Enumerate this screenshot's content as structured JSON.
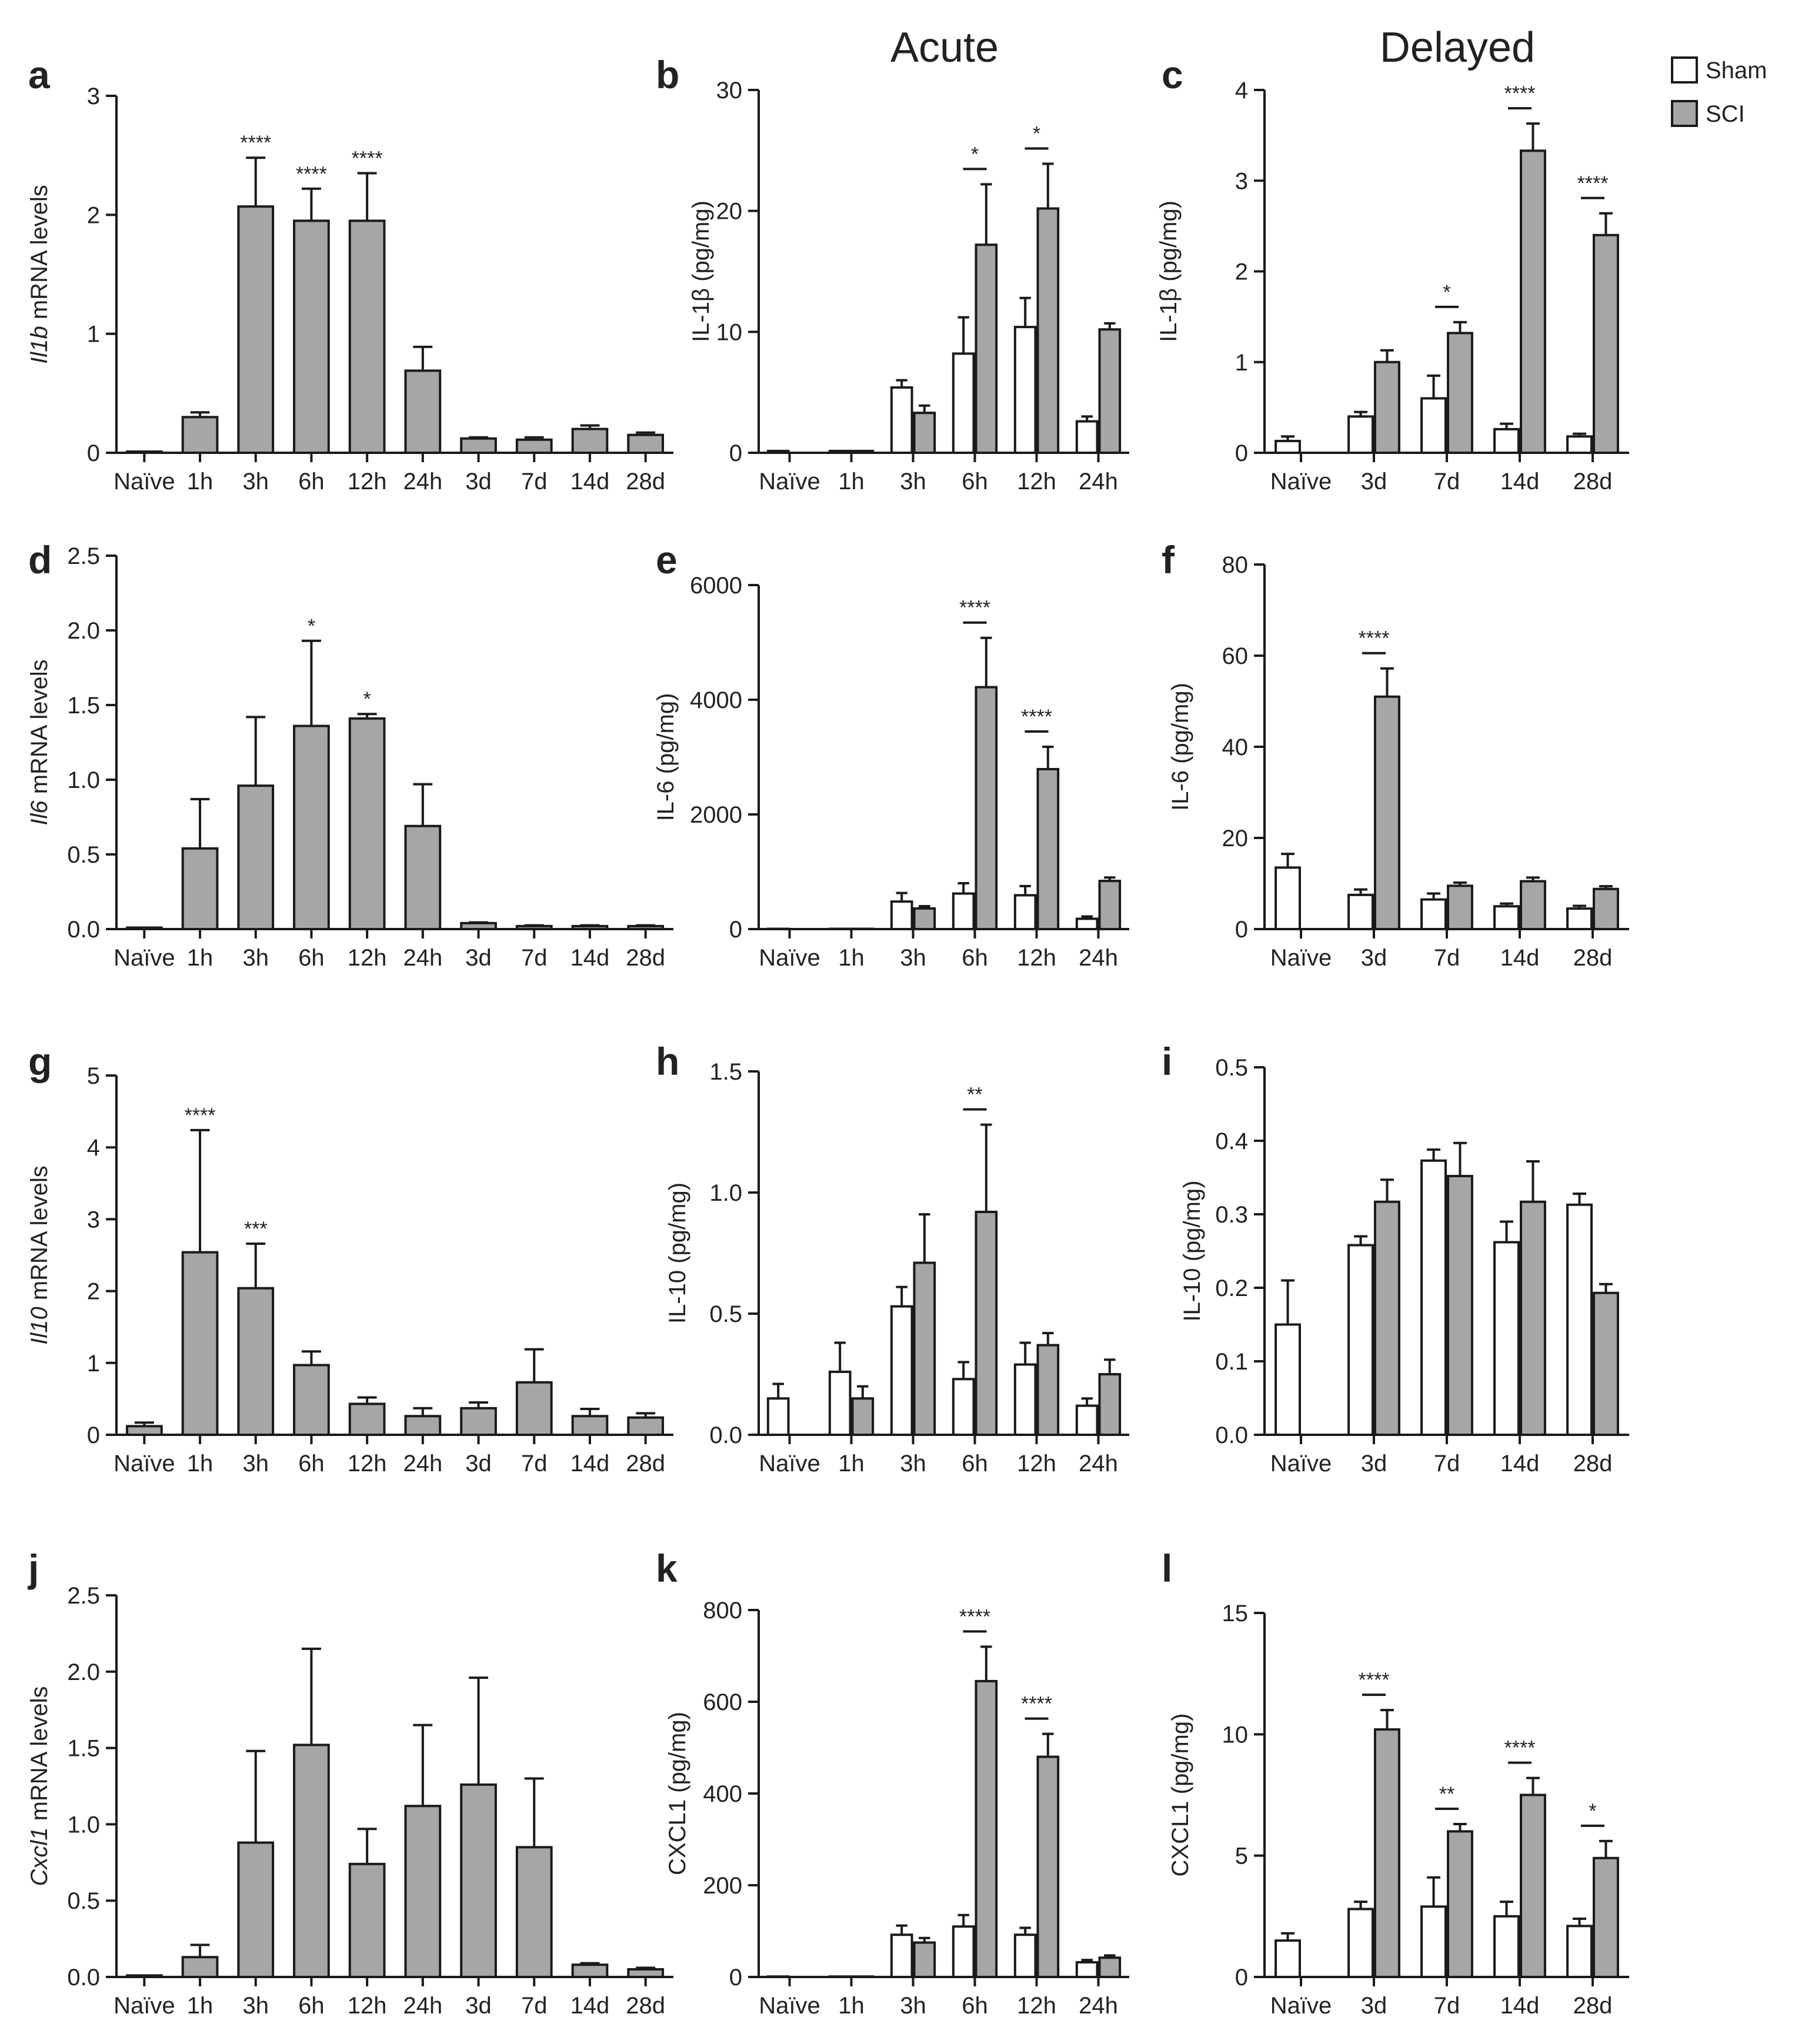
{
  "headers": {
    "acute": "Acute",
    "delayed": "Delayed"
  },
  "legend": [
    {
      "name": "Sham",
      "color": "#ffffff"
    },
    {
      "name": "SCI",
      "color": "#a6a6a6"
    }
  ],
  "colors": {
    "sci": "#a6a6a6",
    "sham": "#ffffff",
    "stroke": "#1a1a1a"
  },
  "chart_data": [
    {
      "panel": "a",
      "type": "bar",
      "ylabel_italic": "Il1b",
      "ylabel_rest": " mRNA levels",
      "ylim": [
        0,
        3
      ],
      "yticks": [
        "0",
        "1",
        "2",
        "3"
      ],
      "categories": [
        "Naïve",
        "1h",
        "3h",
        "6h",
        "12h",
        "24h",
        "3d",
        "7d",
        "14d",
        "28d"
      ],
      "series": [
        {
          "name": "SCI",
          "values": [
            0.01,
            0.3,
            2.07,
            1.95,
            1.95,
            0.69,
            0.12,
            0.11,
            0.2,
            0.15
          ],
          "errors": [
            0,
            0.04,
            0.41,
            0.27,
            0.4,
            0.2,
            0.01,
            0.02,
            0.03,
            0.02
          ]
        }
      ],
      "annotations": [
        "",
        "",
        "****",
        "****",
        "****",
        "",
        "",
        "",
        "",
        ""
      ]
    },
    {
      "panel": "b",
      "type": "bar",
      "ylabel": "IL-1β (pg/mg)",
      "ylim": [
        0,
        30
      ],
      "yticks": [
        "0",
        "10",
        "20",
        "30"
      ],
      "categories": [
        "Naïve",
        "1h",
        "3h",
        "6h",
        "12h",
        "24h"
      ],
      "series": [
        {
          "name": "Sham",
          "values": [
            0.15,
            0.15,
            5.4,
            8.2,
            10.4,
            2.6
          ],
          "errors": [
            0,
            0,
            0.6,
            3.0,
            2.4,
            0.4
          ]
        },
        {
          "name": "SCI",
          "values": [
            null,
            0.15,
            3.3,
            17.2,
            20.2,
            10.2
          ],
          "errors": [
            0,
            0,
            0.6,
            5.0,
            3.7,
            0.5
          ]
        }
      ],
      "annotations": [
        "",
        "",
        "",
        "*",
        "*",
        ""
      ]
    },
    {
      "panel": "c",
      "type": "bar",
      "ylabel": "IL-1β (pg/mg)",
      "ylim": [
        0,
        4
      ],
      "yticks": [
        "0",
        "1",
        "2",
        "3",
        "4"
      ],
      "categories": [
        "Naïve",
        "3d",
        "7d",
        "14d",
        "28d"
      ],
      "series": [
        {
          "name": "Sham",
          "values": [
            0.13,
            0.4,
            0.6,
            0.26,
            0.18
          ],
          "errors": [
            0.05,
            0.05,
            0.25,
            0.06,
            0.03
          ]
        },
        {
          "name": "SCI",
          "values": [
            null,
            1.0,
            1.32,
            3.33,
            2.4
          ],
          "errors": [
            0,
            0.13,
            0.12,
            0.3,
            0.24
          ]
        }
      ],
      "annotations": [
        "",
        "",
        "*",
        "****",
        "****"
      ]
    },
    {
      "panel": "d",
      "type": "bar",
      "ylabel_italic": "Il6",
      "ylabel_rest": " mRNA levels",
      "ylim": [
        0,
        2.5
      ],
      "yticks": [
        "0.0",
        "0.5",
        "1.0",
        "1.5",
        "2.0",
        "2.5"
      ],
      "categories": [
        "Naïve",
        "1h",
        "3h",
        "6h",
        "12h",
        "24h",
        "3d",
        "7d",
        "14d",
        "28d"
      ],
      "series": [
        {
          "name": "SCI",
          "values": [
            0.01,
            0.54,
            0.96,
            1.36,
            1.41,
            0.69,
            0.04,
            0.02,
            0.02,
            0.02
          ],
          "errors": [
            0,
            0.33,
            0.46,
            0.57,
            0.03,
            0.28,
            0.005,
            0.005,
            0.005,
            0.005
          ]
        }
      ],
      "annotations": [
        "",
        "",
        "",
        "*",
        "*",
        "",
        "",
        "",
        "",
        ""
      ]
    },
    {
      "panel": "e",
      "type": "bar",
      "ylabel": "IL-6 (pg/mg)",
      "ylim": [
        0,
        6000
      ],
      "yticks": [
        "0",
        "2000",
        "4000",
        "6000"
      ],
      "categories": [
        "Naïve",
        "1h",
        "3h",
        "6h",
        "12h",
        "24h"
      ],
      "series": [
        {
          "name": "Sham",
          "values": [
            5,
            5,
            480,
            620,
            590,
            180
          ],
          "errors": [
            0,
            0,
            150,
            180,
            160,
            40
          ]
        },
        {
          "name": "SCI",
          "values": [
            null,
            5,
            360,
            4220,
            2790,
            840
          ],
          "errors": [
            0,
            0,
            40,
            860,
            390,
            60
          ]
        }
      ],
      "annotations": [
        "",
        "",
        "",
        "****",
        "****",
        ""
      ]
    },
    {
      "panel": "f",
      "type": "bar",
      "ylabel": "IL-6 (pg/mg)",
      "ylim": [
        0,
        80
      ],
      "yticks": [
        "0",
        "20",
        "40",
        "60",
        "80"
      ],
      "categories": [
        "Naïve",
        "3d",
        "7d",
        "14d",
        "28d"
      ],
      "series": [
        {
          "name": "Sham",
          "values": [
            13.5,
            7.5,
            6.5,
            5,
            4.5
          ],
          "errors": [
            3,
            1.2,
            1.3,
            0.6,
            0.6
          ]
        },
        {
          "name": "SCI",
          "values": [
            null,
            51,
            9.5,
            10.5,
            8.8
          ],
          "errors": [
            0,
            6.2,
            0.7,
            0.8,
            0.6
          ]
        }
      ],
      "annotations": [
        "",
        "****",
        "",
        "",
        ""
      ]
    },
    {
      "panel": "g",
      "type": "bar",
      "ylabel_italic": "Il10",
      "ylabel_rest": " mRNA levels",
      "ylim": [
        0,
        5
      ],
      "yticks": [
        "0",
        "1",
        "2",
        "3",
        "4",
        "5"
      ],
      "categories": [
        "Naïve",
        "1h",
        "3h",
        "6h",
        "12h",
        "24h",
        "3d",
        "7d",
        "14d",
        "28d"
      ],
      "series": [
        {
          "name": "SCI",
          "values": [
            0.12,
            2.54,
            2.04,
            0.97,
            0.43,
            0.26,
            0.37,
            0.73,
            0.26,
            0.24
          ],
          "errors": [
            0.05,
            1.7,
            0.62,
            0.19,
            0.09,
            0.11,
            0.08,
            0.46,
            0.1,
            0.06
          ]
        }
      ],
      "annotations": [
        "",
        "****",
        "***",
        "",
        "",
        "",
        "",
        "",
        "",
        ""
      ]
    },
    {
      "panel": "h",
      "type": "bar",
      "ylabel": "IL-10 (pg/mg)",
      "ylim": [
        0,
        1.5
      ],
      "yticks": [
        "0.0",
        "0.5",
        "1.0",
        "1.5"
      ],
      "categories": [
        "Naïve",
        "1h",
        "3h",
        "6h",
        "12h",
        "24h"
      ],
      "series": [
        {
          "name": "Sham",
          "values": [
            0.15,
            0.26,
            0.53,
            0.23,
            0.29,
            0.12
          ],
          "errors": [
            0.06,
            0.12,
            0.08,
            0.07,
            0.09,
            0.03
          ]
        },
        {
          "name": "SCI",
          "values": [
            null,
            0.15,
            0.71,
            0.92,
            0.37,
            0.25
          ],
          "errors": [
            0,
            0.05,
            0.2,
            0.36,
            0.05,
            0.06
          ]
        }
      ],
      "annotations": [
        "",
        "",
        "",
        "**",
        "",
        ""
      ]
    },
    {
      "panel": "i",
      "type": "bar",
      "ylabel": "IL-10 (pg/mg)",
      "ylim": [
        0,
        0.5
      ],
      "yticks": [
        "0.0",
        "0.1",
        "0.2",
        "0.3",
        "0.4",
        "0.5"
      ],
      "categories": [
        "Naïve",
        "3d",
        "7d",
        "14d",
        "28d"
      ],
      "series": [
        {
          "name": "Sham",
          "values": [
            0.15,
            0.258,
            0.373,
            0.262,
            0.313
          ],
          "errors": [
            0.06,
            0.012,
            0.015,
            0.028,
            0.015
          ]
        },
        {
          "name": "SCI",
          "values": [
            null,
            0.317,
            0.352,
            0.317,
            0.193
          ],
          "errors": [
            0,
            0.03,
            0.045,
            0.055,
            0.012
          ]
        }
      ],
      "annotations": [
        "",
        "",
        "",
        "",
        ""
      ]
    },
    {
      "panel": "j",
      "type": "bar",
      "ylabel_italic": "Cxcl1",
      "ylabel_rest": " mRNA levels",
      "ylim": [
        0,
        2.5
      ],
      "yticks": [
        "0.0",
        "0.5",
        "1.0",
        "1.5",
        "2.0",
        "2.5"
      ],
      "categories": [
        "Naïve",
        "1h",
        "3h",
        "6h",
        "12h",
        "24h",
        "3d",
        "7d",
        "14d",
        "28d"
      ],
      "series": [
        {
          "name": "SCI",
          "values": [
            0.01,
            0.13,
            0.88,
            1.52,
            0.74,
            1.12,
            1.26,
            0.85,
            0.08,
            0.05
          ],
          "errors": [
            0,
            0.08,
            0.6,
            0.63,
            0.23,
            0.53,
            0.7,
            0.45,
            0.01,
            0.01
          ]
        }
      ],
      "annotations": [
        "",
        "",
        "",
        "",
        "",
        "",
        "",
        "",
        "",
        ""
      ]
    },
    {
      "panel": "k",
      "type": "bar",
      "ylabel": "CXCL1 (pg/mg)",
      "ylim": [
        0,
        800
      ],
      "yticks": [
        "0",
        "200",
        "400",
        "600",
        "800"
      ],
      "categories": [
        "Naïve",
        "1h",
        "3h",
        "6h",
        "12h",
        "24h"
      ],
      "series": [
        {
          "name": "Sham",
          "values": [
            1,
            1,
            92,
            110,
            92,
            32
          ],
          "errors": [
            0,
            0,
            20,
            25,
            15,
            5
          ]
        },
        {
          "name": "SCI",
          "values": [
            null,
            1,
            75,
            645,
            480,
            42
          ],
          "errors": [
            0,
            0,
            10,
            75,
            50,
            5
          ]
        }
      ],
      "annotations": [
        "",
        "",
        "",
        "****",
        "****",
        ""
      ]
    },
    {
      "panel": "l",
      "type": "bar",
      "ylabel": "CXCL1 (pg/mg)",
      "ylim": [
        0,
        15
      ],
      "yticks": [
        "0",
        "5",
        "10",
        "15"
      ],
      "categories": [
        "Naïve",
        "3d",
        "7d",
        "14d",
        "28d"
      ],
      "series": [
        {
          "name": "Sham",
          "values": [
            1.5,
            2.8,
            2.9,
            2.5,
            2.1
          ],
          "errors": [
            0.3,
            0.3,
            1.2,
            0.6,
            0.3
          ]
        },
        {
          "name": "SCI",
          "values": [
            null,
            10.2,
            6.0,
            7.5,
            4.9
          ],
          "errors": [
            0,
            0.8,
            0.3,
            0.7,
            0.7
          ]
        }
      ],
      "annotations": [
        "",
        "****",
        "**",
        "****",
        "*"
      ]
    }
  ]
}
